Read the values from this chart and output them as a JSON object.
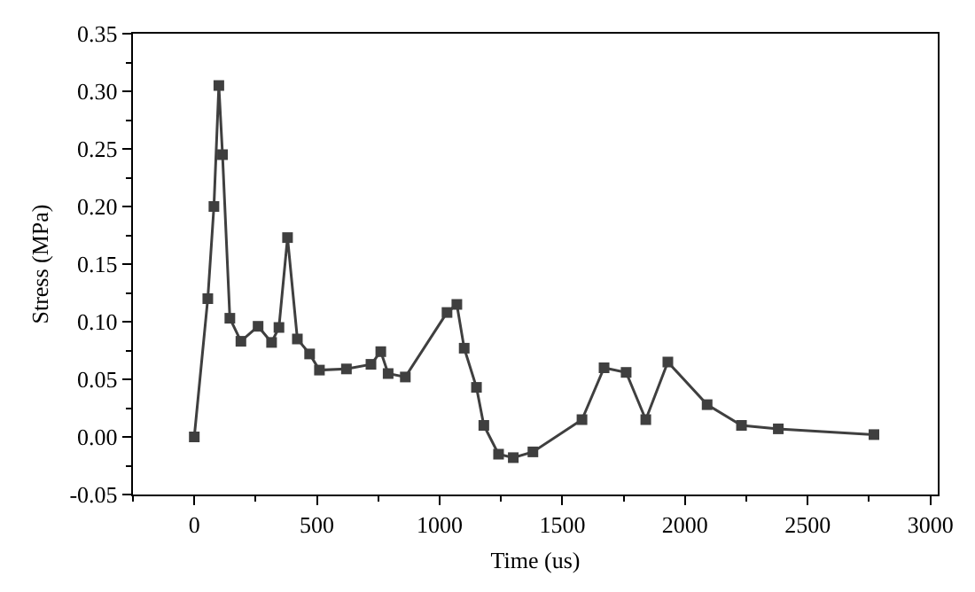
{
  "chart_data": {
    "type": "line",
    "xlabel": "Time (us)",
    "ylabel": "Stress (MPa)",
    "marker": "square",
    "line_style": "solid",
    "grid": false,
    "xlim": [
      -250,
      3030
    ],
    "xticks": [
      0,
      500,
      1000,
      1500,
      2000,
      2500,
      3000
    ],
    "ylim": [
      -0.05,
      0.35
    ],
    "yticks": [
      -0.05,
      {
        "value": 0,
        "label": "0.00"
      },
      {
        "value": 0.05,
        "label": "0.05"
      },
      {
        "value": 0.1,
        "label": "0.10"
      },
      {
        "value": 0.15,
        "label": "0.15"
      },
      {
        "value": 0.2,
        "label": "0.20"
      },
      {
        "value": 0.25,
        "label": "0.25"
      },
      {
        "value": 0.3,
        "label": "0.30"
      },
      0.35
    ],
    "series": [
      {
        "color": "#3f3f3f",
        "x": [
          0,
          55,
          80,
          100,
          115,
          145,
          190,
          260,
          315,
          345,
          380,
          420,
          470,
          510,
          620,
          720,
          760,
          790,
          860,
          1030,
          1070,
          1100,
          1150,
          1180,
          1240,
          1300,
          1380,
          1580,
          1670,
          1760,
          1840,
          1930,
          2090,
          2230,
          2380,
          2770
        ],
        "values": [
          0,
          0.12,
          0.2,
          0.305,
          0.245,
          0.103,
          0.083,
          0.096,
          0.082,
          0.095,
          0.173,
          0.085,
          0.072,
          0.058,
          0.059,
          0.063,
          0.074,
          0.055,
          0.052,
          0.108,
          0.115,
          0.077,
          0.043,
          0.01,
          -0.015,
          -0.018,
          -0.013,
          0.015,
          0.06,
          0.056,
          0.015,
          0.065,
          0.028,
          0.01,
          0.007,
          0.002
        ]
      }
    ]
  }
}
